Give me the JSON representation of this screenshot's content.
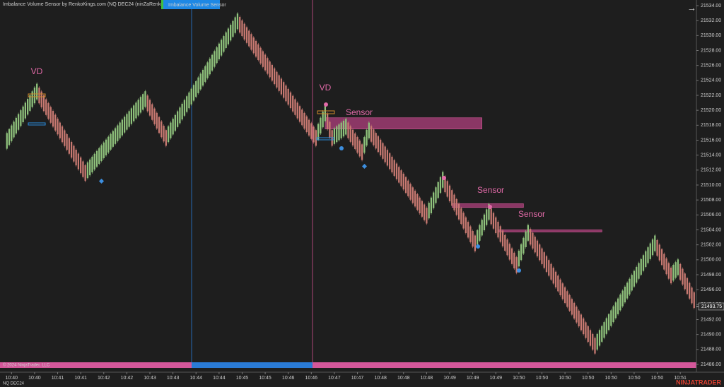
{
  "chart_data": {
    "type": "renko",
    "title": "Imbalance Volume Sensor by RenkoKings.com (NQ DEC24 (ninZaRenko 6/2))",
    "indicator_button": "Imbalance Volume Sensor",
    "copyright": "© 2024 NinjaTrader, LLC",
    "instrument": "NQ DEC24",
    "brand": "NINJATRADER",
    "last_price": 21493.75,
    "last_price_label": "21493.75",
    "up_color": "#8fc27c",
    "down_color": "#c97a72",
    "x": [
      2,
      16,
      37,
      63,
      72,
      103,
      137,
      141,
      144,
      150,
      157,
      160,
      185,
      192,
      206,
      212,
      224,
      229,
      258,
      284,
      291,
      294,
      301
    ],
    "values": [
      21515.4,
      21522.5,
      21511.6,
      21521.5,
      21516.3,
      21531.9,
      21516.3,
      21519.6,
      21516.3,
      21517.8,
      21514.4,
      21517.3,
      21505.9,
      21510.7,
      21502.2,
      21506.4,
      21499.3,
      21503.6,
      21488.5,
      21502.2,
      21497.9,
      21499.0,
      21494.6
    ],
    "zones": [
      {
        "bars": [
          141,
          209
        ],
        "prices": [
          21519.0,
          21517.5
        ]
      },
      {
        "bars": [
          196,
          227
        ],
        "prices": [
          21507.5,
          21507.0
        ]
      },
      {
        "bars": [
          216,
          261
        ],
        "prices": [
          21504.0,
          21503.8
        ]
      }
    ],
    "annotations": [
      "VD",
      "VD",
      "Sensor",
      "Sensor",
      "Sensor"
    ],
    "xlim": [
      0,
      302
    ],
    "ylim": [
      21486,
      21534
    ],
    "yticks": [
      {
        "value": 21486,
        "label": "21486.00"
      },
      {
        "value": 21488,
        "label": "21488.00"
      },
      {
        "value": 21490,
        "label": "21490.00"
      },
      {
        "value": 21492,
        "label": "21492.00"
      },
      {
        "value": 21494,
        "label": "21494.00"
      },
      {
        "value": 21496,
        "label": "21496.00"
      },
      {
        "value": 21498,
        "label": "21498.00"
      },
      {
        "value": 21500,
        "label": "21500.00"
      },
      {
        "value": 21502,
        "label": "21502.00"
      },
      {
        "value": 21504,
        "label": "21504.00"
      },
      {
        "value": 21506,
        "label": "21506.00"
      },
      {
        "value": 21508,
        "label": "21508.00"
      },
      {
        "value": 21510,
        "label": "21510.00"
      },
      {
        "value": 21512,
        "label": "21512.00"
      },
      {
        "value": 21514,
        "label": "21514.00"
      },
      {
        "value": 21516,
        "label": "21516.00"
      },
      {
        "value": 21518,
        "label": "21518.00"
      },
      {
        "value": 21520,
        "label": "21520.00"
      },
      {
        "value": 21522,
        "label": "21522.00"
      },
      {
        "value": 21524,
        "label": "21524.00"
      },
      {
        "value": 21526,
        "label": "21526.00"
      },
      {
        "value": 21528,
        "label": "21528.00"
      },
      {
        "value": 21530,
        "label": "21530.00"
      },
      {
        "value": 21532,
        "label": "21532.00"
      },
      {
        "value": 21534,
        "label": "21534.00"
      }
    ],
    "xticks": [
      {
        "value": 5,
        "label": "10:40"
      },
      {
        "value": 15,
        "label": "10:40"
      },
      {
        "value": 25,
        "label": "10:41"
      },
      {
        "value": 35,
        "label": "10:41"
      },
      {
        "value": 45,
        "label": "10:42"
      },
      {
        "value": 55,
        "label": "10:42"
      },
      {
        "value": 65,
        "label": "10:43"
      },
      {
        "value": 75,
        "label": "10:43"
      },
      {
        "value": 85,
        "label": "10:44"
      },
      {
        "value": 95,
        "label": "10:44"
      },
      {
        "value": 105,
        "label": "10:45"
      },
      {
        "value": 115,
        "label": "10:45"
      },
      {
        "value": 125,
        "label": "10:46"
      },
      {
        "value": 135,
        "label": "10:46"
      },
      {
        "value": 145,
        "label": "10:47"
      },
      {
        "value": 155,
        "label": "10:47"
      },
      {
        "value": 165,
        "label": "10:48"
      },
      {
        "value": 175,
        "label": "10:48"
      },
      {
        "value": 185,
        "label": "10:48"
      },
      {
        "value": 195,
        "label": "10:49"
      },
      {
        "value": 205,
        "label": "10:49"
      },
      {
        "value": 215,
        "label": "10:49"
      },
      {
        "value": 225,
        "label": "10:50"
      },
      {
        "value": 235,
        "label": "10:50"
      },
      {
        "value": 245,
        "label": "10:50"
      },
      {
        "value": 255,
        "label": "10:50"
      },
      {
        "value": 265,
        "label": "10:50"
      },
      {
        "value": 275,
        "label": "10:50"
      },
      {
        "value": 285,
        "label": "10:50"
      },
      {
        "value": 295,
        "label": "10:51"
      }
    ]
  }
}
